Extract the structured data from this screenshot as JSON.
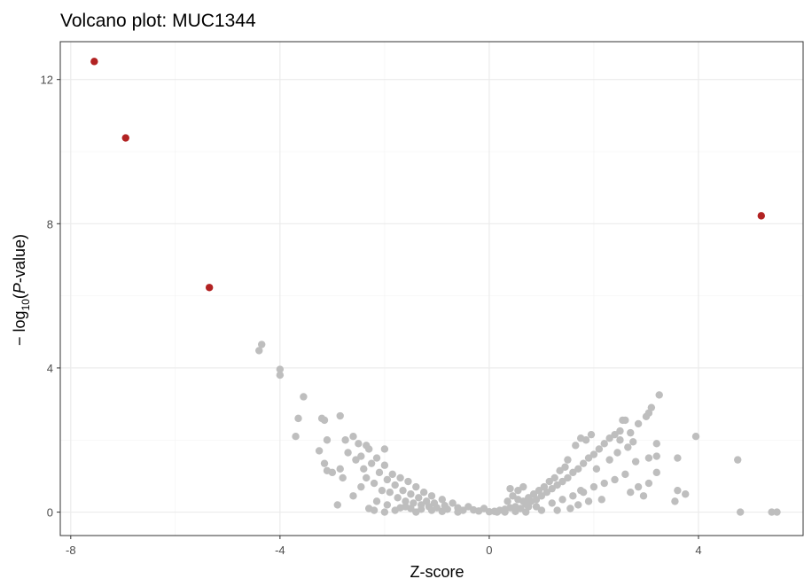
{
  "chart_data": {
    "type": "scatter",
    "title": "Volcano plot: MUC1344",
    "xlabel": "Z-score",
    "ylabel_prefix": "− log",
    "ylabel_sub": "10",
    "ylabel_open": "(",
    "ylabel_italic": "P",
    "ylabel_suffix": "-value)",
    "xlim": [
      -8.2,
      6.0
    ],
    "ylim": [
      -0.65,
      13.05
    ],
    "x_ticks": [
      -8,
      -4,
      0,
      4
    ],
    "x_tick_labels": [
      "-8",
      "-4",
      "0",
      "4"
    ],
    "y_ticks": [
      0,
      4,
      8,
      12
    ],
    "y_tick_labels": [
      "0",
      "4",
      "8",
      "12"
    ],
    "grid": true,
    "colors": {
      "significant": "#b22222",
      "nonsignificant": "#bebebe",
      "grid_major": "#ebebeb",
      "grid_minor": "#f2f2f2",
      "panel_border": "#333333"
    },
    "series": [
      {
        "points": [
          [
            -7.55,
            12.5
          ],
          [
            -6.95,
            10.38
          ],
          [
            -5.35,
            6.23
          ],
          [
            5.2,
            8.22
          ]
        ]
      },
      {
        "points": [
          [
            -4.4,
            4.48
          ],
          [
            -4.35,
            4.65
          ],
          [
            -4.0,
            3.96
          ],
          [
            -4.0,
            3.8
          ],
          [
            -3.55,
            3.2
          ],
          [
            -3.65,
            2.6
          ],
          [
            -3.7,
            2.1
          ],
          [
            -3.2,
            2.6
          ],
          [
            -3.15,
            2.55
          ],
          [
            -2.85,
            2.67
          ],
          [
            -3.1,
            2.0
          ],
          [
            -2.75,
            2.0
          ],
          [
            -3.25,
            1.7
          ],
          [
            -3.15,
            1.35
          ],
          [
            -3.0,
            1.1
          ],
          [
            -2.85,
            1.2
          ],
          [
            -2.7,
            1.65
          ],
          [
            -2.6,
            2.1
          ],
          [
            -2.5,
            1.9
          ],
          [
            -2.45,
            1.55
          ],
          [
            -2.4,
            1.2
          ],
          [
            -2.35,
            0.95
          ],
          [
            -2.3,
            1.75
          ],
          [
            -2.25,
            1.35
          ],
          [
            -2.2,
            0.8
          ],
          [
            -2.15,
            1.5
          ],
          [
            -2.1,
            1.1
          ],
          [
            -2.05,
            0.6
          ],
          [
            -2.0,
            1.3
          ],
          [
            -1.95,
            0.9
          ],
          [
            -1.9,
            0.55
          ],
          [
            -1.85,
            1.05
          ],
          [
            -1.8,
            0.75
          ],
          [
            -1.75,
            0.4
          ],
          [
            -1.7,
            0.95
          ],
          [
            -1.65,
            0.6
          ],
          [
            -1.6,
            0.3
          ],
          [
            -1.55,
            0.85
          ],
          [
            -1.5,
            0.5
          ],
          [
            -1.45,
            0.25
          ],
          [
            -1.4,
            0.7
          ],
          [
            -1.35,
            0.4
          ],
          [
            -1.3,
            0.2
          ],
          [
            -1.25,
            0.55
          ],
          [
            -1.2,
            0.3
          ],
          [
            -1.15,
            0.15
          ],
          [
            -1.1,
            0.45
          ],
          [
            -1.05,
            0.25
          ],
          [
            -1.0,
            0.12
          ],
          [
            -0.9,
            0.35
          ],
          [
            -0.85,
            0.18
          ],
          [
            -0.8,
            0.08
          ],
          [
            -0.7,
            0.25
          ],
          [
            -0.6,
            0.12
          ],
          [
            -0.5,
            0.05
          ],
          [
            -0.4,
            0.15
          ],
          [
            -0.3,
            0.06
          ],
          [
            -0.2,
            0.03
          ],
          [
            -0.1,
            0.1
          ],
          [
            0.0,
            0.01
          ],
          [
            -2.9,
            0.2
          ],
          [
            -2.6,
            0.45
          ],
          [
            -2.3,
            0.1
          ],
          [
            -2.2,
            0.05
          ],
          [
            -2.0,
            0.0
          ],
          [
            -1.8,
            0.05
          ],
          [
            -1.6,
            0.15
          ],
          [
            -1.4,
            0.0
          ],
          [
            -2.55,
            1.45
          ],
          [
            -2.45,
            0.7
          ],
          [
            -2.15,
            0.3
          ],
          [
            -1.95,
            0.2
          ],
          [
            -2.0,
            1.75
          ],
          [
            -2.35,
            1.85
          ],
          [
            -2.8,
            0.95
          ],
          [
            -3.1,
            1.15
          ],
          [
            0.1,
            0.02
          ],
          [
            0.2,
            0.05
          ],
          [
            0.3,
            0.08
          ],
          [
            0.4,
            0.12
          ],
          [
            0.5,
            0.15
          ],
          [
            0.6,
            0.1
          ],
          [
            0.7,
            0.22
          ],
          [
            0.8,
            0.3
          ],
          [
            0.9,
            0.35
          ],
          [
            1.0,
            0.45
          ],
          [
            1.1,
            0.55
          ],
          [
            1.2,
            0.65
          ],
          [
            1.3,
            0.75
          ],
          [
            1.4,
            0.85
          ],
          [
            1.5,
            0.95
          ],
          [
            1.6,
            1.1
          ],
          [
            1.7,
            1.2
          ],
          [
            1.8,
            1.35
          ],
          [
            1.9,
            1.5
          ],
          [
            2.0,
            1.6
          ],
          [
            2.1,
            1.75
          ],
          [
            2.2,
            1.9
          ],
          [
            2.3,
            2.05
          ],
          [
            2.4,
            2.15
          ],
          [
            2.5,
            2.25
          ],
          [
            2.55,
            2.55
          ],
          [
            2.6,
            2.55
          ],
          [
            2.7,
            2.2
          ],
          [
            2.85,
            2.45
          ],
          [
            3.0,
            2.65
          ],
          [
            3.05,
            2.75
          ],
          [
            3.1,
            2.9
          ],
          [
            3.25,
            3.25
          ],
          [
            1.65,
            1.85
          ],
          [
            1.75,
            2.05
          ],
          [
            1.85,
            2.0
          ],
          [
            1.95,
            2.15
          ],
          [
            1.5,
            1.45
          ],
          [
            1.45,
            1.25
          ],
          [
            1.35,
            1.15
          ],
          [
            1.25,
            0.95
          ],
          [
            1.15,
            0.85
          ],
          [
            1.05,
            0.7
          ],
          [
            0.95,
            0.6
          ],
          [
            0.85,
            0.5
          ],
          [
            0.75,
            0.4
          ],
          [
            0.65,
            0.3
          ],
          [
            0.55,
            0.6
          ],
          [
            0.4,
            0.65
          ],
          [
            0.65,
            0.7
          ],
          [
            0.45,
            0.45
          ],
          [
            0.9,
            0.15
          ],
          [
            1.0,
            0.05
          ],
          [
            1.2,
            0.25
          ],
          [
            1.4,
            0.35
          ],
          [
            1.6,
            0.45
          ],
          [
            1.8,
            0.55
          ],
          [
            2.0,
            0.7
          ],
          [
            2.2,
            0.8
          ],
          [
            2.4,
            0.9
          ],
          [
            2.6,
            1.05
          ],
          [
            2.8,
            1.4
          ],
          [
            3.05,
            1.5
          ],
          [
            3.2,
            1.9
          ],
          [
            3.2,
            1.55
          ],
          [
            3.2,
            1.1
          ],
          [
            2.85,
            0.7
          ],
          [
            2.95,
            0.45
          ],
          [
            3.05,
            0.8
          ],
          [
            2.7,
            0.55
          ],
          [
            2.15,
            0.35
          ],
          [
            1.9,
            0.3
          ],
          [
            1.7,
            0.2
          ],
          [
            3.55,
            0.3
          ],
          [
            3.6,
            0.6
          ],
          [
            3.6,
            1.5
          ],
          [
            3.75,
            0.5
          ],
          [
            3.95,
            2.1
          ],
          [
            4.75,
            1.45
          ],
          [
            4.8,
            0.0
          ],
          [
            5.4,
            0.0
          ],
          [
            5.5,
            0.0
          ],
          [
            0.15,
            0.0
          ],
          [
            0.3,
            0.0
          ],
          [
            0.5,
            0.02
          ],
          [
            0.7,
            0.0
          ],
          [
            -0.6,
            0.0
          ],
          [
            -0.9,
            0.02
          ],
          [
            -1.1,
            0.05
          ],
          [
            -1.3,
            0.08
          ],
          [
            -1.5,
            0.1
          ],
          [
            -1.7,
            0.12
          ],
          [
            0.35,
            0.3
          ],
          [
            0.55,
            0.35
          ],
          [
            0.75,
            0.15
          ],
          [
            1.3,
            0.05
          ],
          [
            1.55,
            0.1
          ],
          [
            1.75,
            0.6
          ],
          [
            2.05,
            1.2
          ],
          [
            2.3,
            1.45
          ],
          [
            2.45,
            1.65
          ],
          [
            2.65,
            1.8
          ],
          [
            2.75,
            1.95
          ],
          [
            2.5,
            2.0
          ]
        ]
      }
    ]
  }
}
